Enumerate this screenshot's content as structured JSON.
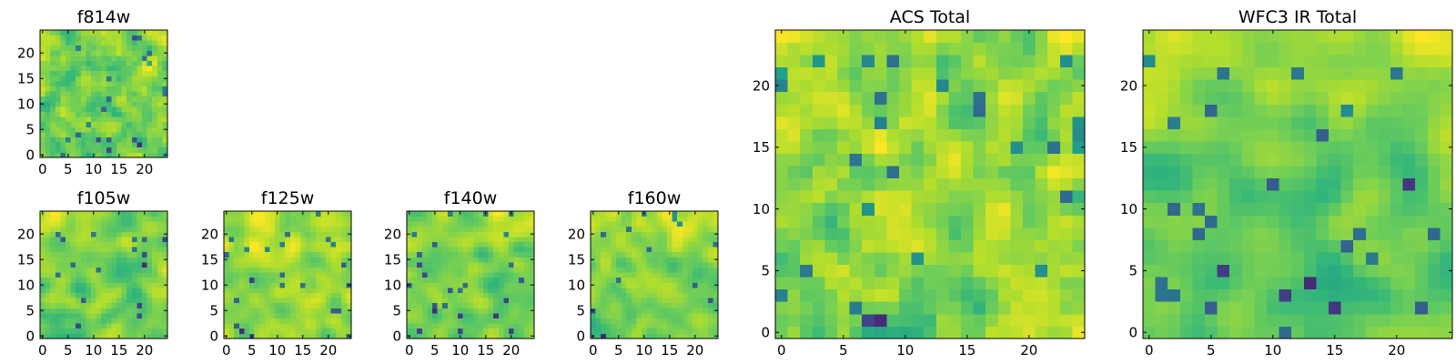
{
  "chart_data": [
    {
      "type": "heatmap",
      "title": "f814w",
      "xlabel": "",
      "ylabel": "",
      "xlim": [
        -0.5,
        24.5
      ],
      "ylim": [
        -0.5,
        24.5
      ],
      "xticks": [
        0,
        5,
        10,
        15,
        20
      ],
      "yticks": [
        0,
        5,
        10,
        15,
        20
      ],
      "grid": false,
      "colormap": "viridis",
      "seed": 81,
      "blur": 1,
      "rows": 25,
      "cols": 25
    },
    {
      "type": "heatmap",
      "title": "f105w",
      "xlabel": "",
      "ylabel": "",
      "xlim": [
        -0.5,
        24.5
      ],
      "ylim": [
        -0.5,
        24.5
      ],
      "xticks": [
        0,
        5,
        10,
        15,
        20
      ],
      "yticks": [
        0,
        5,
        10,
        15,
        20
      ],
      "grid": false,
      "colormap": "viridis",
      "seed": 105,
      "blur": 2,
      "rows": 25,
      "cols": 25
    },
    {
      "type": "heatmap",
      "title": "f125w",
      "xlabel": "",
      "ylabel": "",
      "xlim": [
        -0.5,
        24.5
      ],
      "ylim": [
        -0.5,
        24.5
      ],
      "xticks": [
        0,
        5,
        10,
        15,
        20
      ],
      "yticks": [
        0,
        5,
        10,
        15,
        20
      ],
      "grid": false,
      "colormap": "viridis",
      "seed": 125,
      "blur": 2,
      "rows": 25,
      "cols": 25
    },
    {
      "type": "heatmap",
      "title": "f140w",
      "xlabel": "",
      "ylabel": "",
      "xlim": [
        -0.5,
        24.5
      ],
      "ylim": [
        -0.5,
        24.5
      ],
      "xticks": [
        0,
        5,
        10,
        15,
        20
      ],
      "yticks": [
        0,
        5,
        10,
        15,
        20
      ],
      "grid": false,
      "colormap": "viridis",
      "seed": 140,
      "blur": 2,
      "rows": 25,
      "cols": 25
    },
    {
      "type": "heatmap",
      "title": "f160w",
      "xlabel": "",
      "ylabel": "",
      "xlim": [
        -0.5,
        24.5
      ],
      "ylim": [
        -0.5,
        24.5
      ],
      "xticks": [
        0,
        5,
        10,
        15,
        20
      ],
      "yticks": [
        0,
        5,
        10,
        15,
        20
      ],
      "grid": false,
      "colormap": "viridis",
      "seed": 160,
      "blur": 2,
      "rows": 25,
      "cols": 25
    },
    {
      "type": "heatmap",
      "title": "ACS Total",
      "xlabel": "",
      "ylabel": "",
      "xlim": [
        -0.5,
        24.5
      ],
      "ylim": [
        -0.5,
        24.5
      ],
      "xticks": [
        0,
        5,
        10,
        15,
        20
      ],
      "yticks": [
        0,
        5,
        10,
        15,
        20
      ],
      "grid": false,
      "colormap": "viridis",
      "seed": 814,
      "blur": 1,
      "rows": 25,
      "cols": 25
    },
    {
      "type": "heatmap",
      "title": "WFC3 IR Total",
      "xlabel": "",
      "ylabel": "",
      "xlim": [
        -0.5,
        24.5
      ],
      "ylim": [
        -0.5,
        24.5
      ],
      "xticks": [
        0,
        5,
        10,
        15,
        20
      ],
      "yticks": [
        0,
        5,
        10,
        15,
        20
      ],
      "grid": false,
      "colormap": "viridis",
      "seed": 333,
      "blur": 2,
      "rows": 25,
      "cols": 25
    }
  ],
  "colors": {
    "background": "#ffffff",
    "axes_frame": "#000000",
    "text": "#000000"
  }
}
